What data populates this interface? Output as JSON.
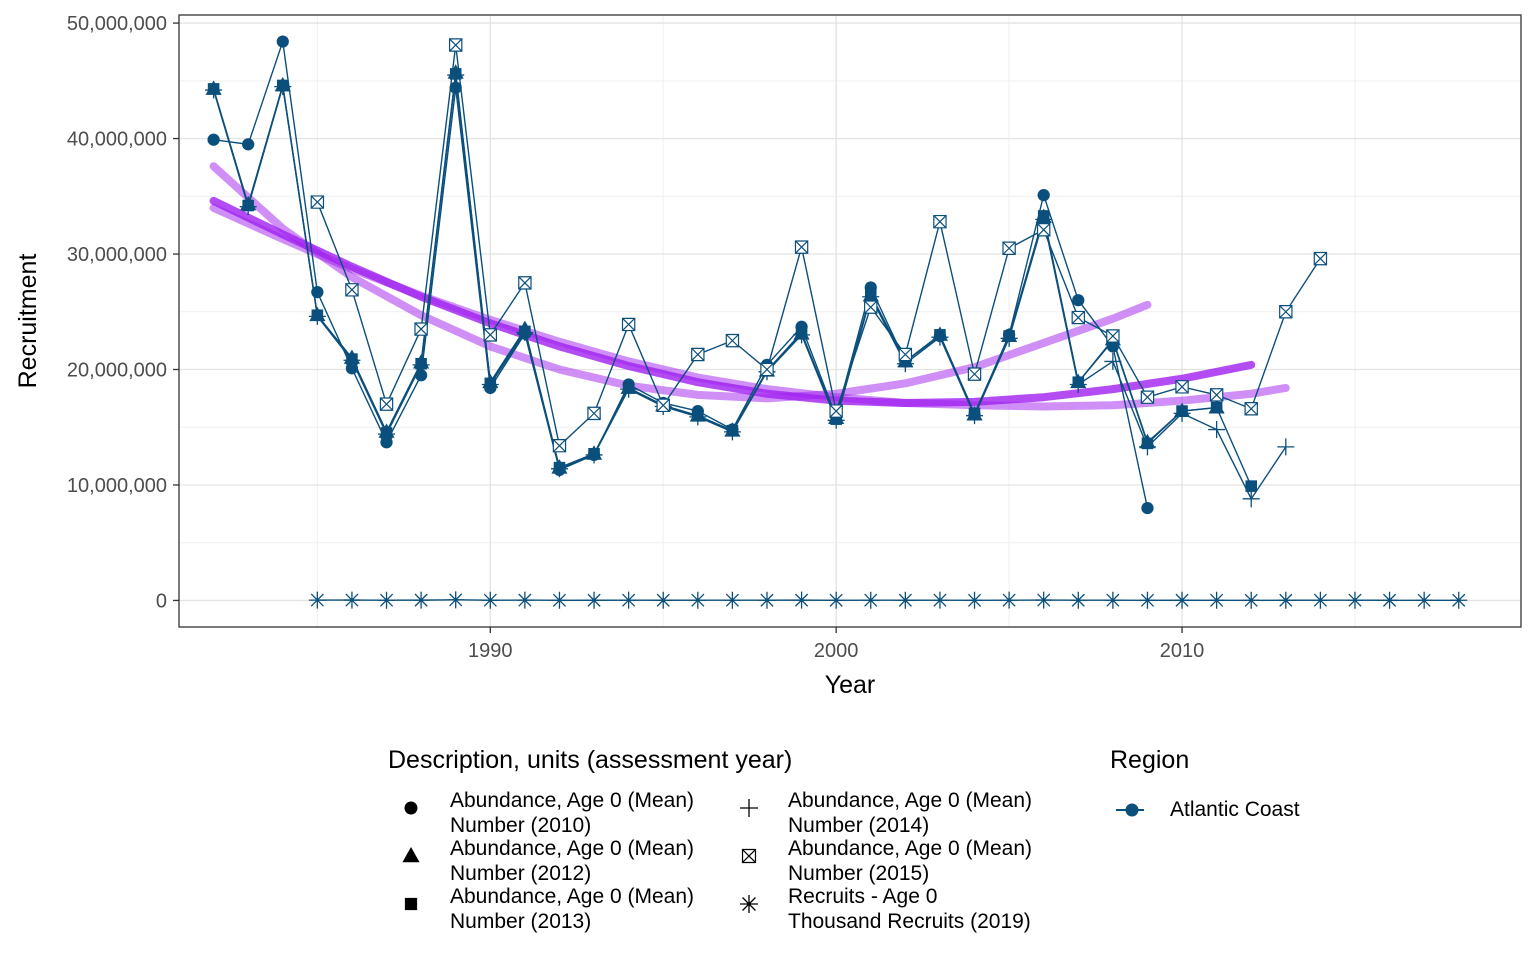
{
  "chart_data": {
    "type": "line",
    "xlabel": "Year",
    "ylabel": "Recruitment",
    "xlim": [
      1981.0,
      2019.8
    ],
    "ylim": [
      -2300000,
      50700000
    ],
    "x_ticks": [
      1990,
      2000,
      2010
    ],
    "x_minor_ticks": [
      1985,
      1995,
      2005,
      2015
    ],
    "y_ticks": [
      0,
      10000000,
      20000000,
      30000000,
      40000000,
      50000000
    ],
    "y_tick_labels": [
      "0",
      "10,000,000",
      "20,000,000",
      "30,000,000",
      "40,000,000",
      "50,000,000"
    ],
    "y_minor_ticks": [
      5000000,
      15000000,
      25000000,
      35000000,
      45000000
    ],
    "grid": true,
    "line_color": "#0b4f7d",
    "trend_color": "#a020f0",
    "series": [
      {
        "legend_index": 0,
        "marker": "circle",
        "x": [
          1982,
          1983,
          1984,
          1985,
          1986,
          1987,
          1988,
          1989,
          1990,
          1991,
          1992,
          1993,
          1994,
          1995,
          1996,
          1997,
          1998,
          1999,
          2000,
          2001,
          2002,
          2003,
          2004,
          2005,
          2006,
          2007,
          2008,
          2009
        ],
        "y": [
          39900000,
          39500000,
          48400000,
          26700000,
          20100000,
          13700000,
          19500000,
          44400000,
          18400000,
          23100000,
          11300000,
          12600000,
          18700000,
          17100000,
          16400000,
          14800000,
          20400000,
          23700000,
          15900000,
          27100000,
          20700000,
          22900000,
          16100000,
          23000000,
          35100000,
          26000000,
          22000000,
          8000000
        ]
      },
      {
        "legend_index": 1,
        "marker": "triangle",
        "x": [
          1982,
          1983,
          1984,
          1985,
          1986,
          1987,
          1988,
          1989,
          1990,
          1991,
          1992,
          1993,
          1994,
          1995,
          1996,
          1997,
          1998,
          1999,
          2000,
          2001,
          2002,
          2003,
          2004,
          2005,
          2006,
          2007,
          2008,
          2009,
          2010,
          2011
        ],
        "y": [
          44300000,
          34300000,
          44600000,
          24700000,
          21000000,
          14600000,
          20600000,
          45700000,
          18900000,
          23500000,
          11500000,
          12700000,
          18400000,
          16900000,
          16000000,
          14700000,
          19900000,
          23100000,
          15800000,
          26400000,
          20700000,
          23000000,
          16100000,
          22900000,
          33200000,
          18900000,
          22600000,
          13700000,
          16400000,
          16700000
        ]
      },
      {
        "legend_index": 2,
        "marker": "square",
        "x": [
          1982,
          1983,
          1984,
          1985,
          1986,
          1987,
          1988,
          1989,
          1990,
          1991,
          1992,
          1993,
          1994,
          1995,
          1996,
          1997,
          1998,
          1999,
          2000,
          2001,
          2002,
          2003,
          2004,
          2005,
          2006,
          2007,
          2008,
          2009,
          2010,
          2011,
          2012
        ],
        "y": [
          44300000,
          34200000,
          44600000,
          24700000,
          20900000,
          14500000,
          20500000,
          45600000,
          18800000,
          23300000,
          11500000,
          12700000,
          18400000,
          16900000,
          16000000,
          14700000,
          19900000,
          23200000,
          15700000,
          26500000,
          20700000,
          23000000,
          16200000,
          22900000,
          33300000,
          18900000,
          22500000,
          13600000,
          16400000,
          16700000,
          9900000
        ]
      },
      {
        "legend_index": 3,
        "marker": "plus",
        "x": [
          1982,
          1983,
          1984,
          1985,
          1986,
          1987,
          1988,
          1989,
          1990,
          1991,
          1992,
          1993,
          1994,
          1995,
          1996,
          1997,
          1998,
          1999,
          2000,
          2001,
          2002,
          2003,
          2004,
          2005,
          2006,
          2007,
          2008,
          2009,
          2010,
          2011,
          2012,
          2013
        ],
        "y": [
          44200000,
          34100000,
          44500000,
          24600000,
          20800000,
          14400000,
          20400000,
          45500000,
          18700000,
          23200000,
          11400000,
          12600000,
          18300000,
          16800000,
          15900000,
          14600000,
          19800000,
          23000000,
          15600000,
          26300000,
          20500000,
          22800000,
          16000000,
          22700000,
          33000000,
          18700000,
          20700000,
          13300000,
          16200000,
          14800000,
          8800000,
          13300000
        ]
      },
      {
        "legend_index": 4,
        "marker": "boxcross",
        "x": [
          1985,
          1986,
          1987,
          1988,
          1989,
          1990,
          1991,
          1992,
          1993,
          1994,
          1995,
          1996,
          1997,
          1998,
          1999,
          2000,
          2001,
          2002,
          2003,
          2004,
          2005,
          2006,
          2007,
          2008,
          2009,
          2010,
          2011,
          2012,
          2013,
          2014
        ],
        "y": [
          34500000,
          26900000,
          17000000,
          23500000,
          48100000,
          23000000,
          27500000,
          13400000,
          16200000,
          23900000,
          16900000,
          21300000,
          22500000,
          20000000,
          30600000,
          16400000,
          25400000,
          21300000,
          32800000,
          19600000,
          30500000,
          32100000,
          24500000,
          22900000,
          17600000,
          18500000,
          17800000,
          16600000,
          25000000,
          29600000
        ]
      },
      {
        "legend_index": 5,
        "marker": "asterisk",
        "x": [
          1985,
          1986,
          1987,
          1988,
          1989,
          1990,
          1991,
          1992,
          1993,
          1994,
          1995,
          1996,
          1997,
          1998,
          1999,
          2000,
          2001,
          2002,
          2003,
          2004,
          2005,
          2006,
          2007,
          2008,
          2009,
          2010,
          2011,
          2012,
          2013,
          2014,
          2015,
          2016,
          2017,
          2018
        ],
        "y": [
          30000,
          32000,
          21000,
          28000,
          51000,
          21000,
          29000,
          14000,
          17000,
          24000,
          17000,
          19000,
          22000,
          18000,
          27000,
          15000,
          21000,
          17000,
          24000,
          14000,
          24000,
          31000,
          18000,
          19000,
          14000,
          16000,
          14000,
          12000,
          16000,
          20000,
          19000,
          16000,
          13000,
          15000
        ]
      }
    ],
    "trend_lines": [
      {
        "opacity": 0.5,
        "x": [
          1982,
          1984,
          1986,
          1988,
          1990,
          1992,
          1994,
          1996,
          1998,
          2000,
          2002,
          2004,
          2006,
          2008,
          2009
        ],
        "y": [
          37600000,
          32200000,
          28000000,
          24700000,
          22000000,
          20000000,
          18600000,
          17800000,
          17500000,
          17900000,
          18800000,
          20200000,
          22300000,
          24400000,
          25600000
        ]
      },
      {
        "opacity": 0.8,
        "x": [
          1982,
          1984,
          1986,
          1988,
          1990,
          1992,
          1994,
          1996,
          1998,
          2000,
          2002,
          2004,
          2006,
          2008,
          2010,
          2012
        ],
        "y": [
          34600000,
          31700000,
          28900000,
          26300000,
          24000000,
          22000000,
          20300000,
          18900000,
          17900000,
          17300000,
          17100000,
          17200000,
          17600000,
          18300000,
          19200000,
          20400000
        ]
      },
      {
        "opacity": 0.5,
        "x": [
          1982,
          1984,
          1986,
          1988,
          1990,
          1992,
          1994,
          1996,
          1998,
          2000,
          2002,
          2004,
          2006,
          2008,
          2010,
          2012,
          2013
        ],
        "y": [
          34000000,
          31300000,
          28700000,
          26400000,
          24300000,
          22400000,
          20700000,
          19300000,
          18300000,
          17600000,
          17100000,
          16900000,
          16800000,
          16900000,
          17300000,
          17900000,
          18400000
        ]
      }
    ],
    "legend_shape": {
      "title": "Description, units (assessment year)",
      "items": [
        {
          "marker": "circle",
          "label": "Abundance, Age 0 (Mean)\nNumber (2010)"
        },
        {
          "marker": "triangle",
          "label": "Abundance, Age 0 (Mean)\nNumber (2012)"
        },
        {
          "marker": "square",
          "label": "Abundance, Age 0 (Mean)\nNumber (2013)"
        },
        {
          "marker": "plus",
          "label": "Abundance, Age 0 (Mean)\nNumber (2014)"
        },
        {
          "marker": "boxcross",
          "label": "Abundance, Age 0 (Mean)\nNumber (2015)"
        },
        {
          "marker": "asterisk",
          "label": "Recruits - Age 0\nThousand Recruits (2019)"
        }
      ]
    },
    "legend_color": {
      "title": "Region",
      "items": [
        {
          "label": "Atlantic Coast",
          "color": "#0b4f7d"
        }
      ]
    }
  }
}
